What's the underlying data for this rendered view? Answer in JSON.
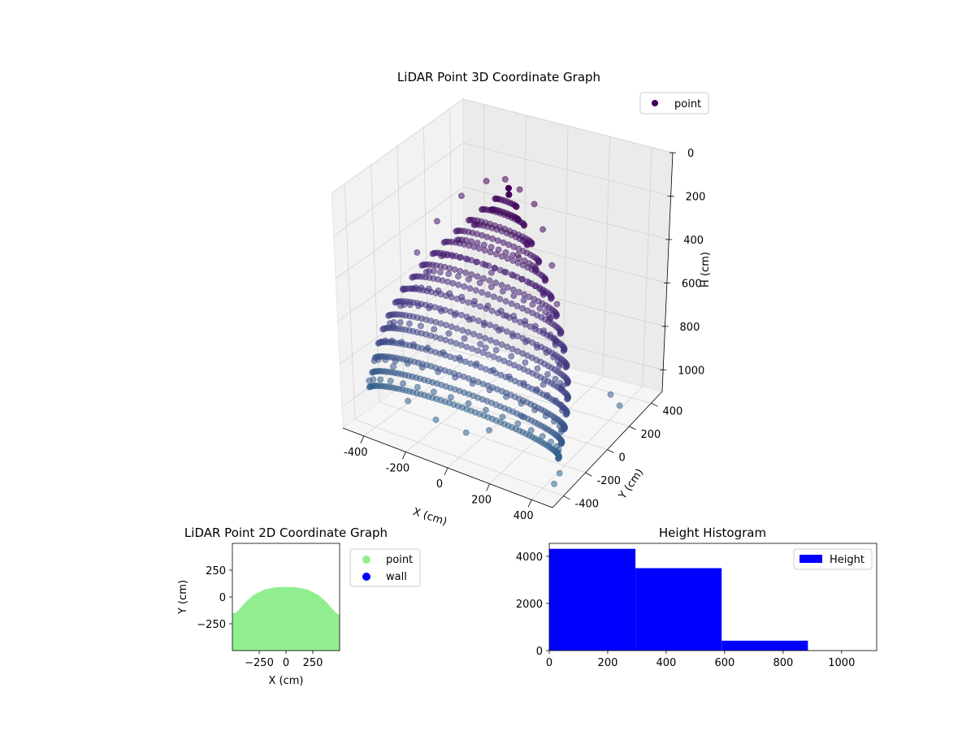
{
  "chart_data": [
    {
      "type": "scatter",
      "projection": "3d",
      "title": "LiDAR Point 3D Coordinate Graph",
      "xlabel": "X (cm)",
      "ylabel": "Y (cm)",
      "zlabel": "H (cm)",
      "xlim": [
        -500,
        500
      ],
      "ylim": [
        -500,
        500
      ],
      "zlim": [
        1100,
        0
      ],
      "x_ticks": [
        "-400",
        "-200",
        "0",
        "200",
        "400"
      ],
      "y_ticks": [
        "-400",
        "-200",
        "0",
        "200",
        "400"
      ],
      "z_ticks": [
        "0",
        "200",
        "400",
        "600",
        "800",
        "1000"
      ],
      "grid": true,
      "legend": [
        "point"
      ],
      "legend_position": "top-right",
      "colormap": "viridis",
      "series": [
        {
          "name": "point",
          "color": "#440154",
          "shape": "dome of concentric rings, apex near H≈0 and Y≈+100, base H≈1000 spreading to X≈±450",
          "points": [
            [
              -20,
              100,
              0
            ],
            [
              60,
              80,
              10
            ],
            [
              140,
              60,
              40
            ],
            [
              -100,
              80,
              30
            ],
            [
              200,
              20,
              120
            ],
            [
              -200,
              40,
              120
            ],
            [
              260,
              -20,
              250
            ],
            [
              -300,
              0,
              260
            ],
            [
              300,
              -60,
              400
            ],
            [
              -380,
              -40,
              420
            ],
            [
              320,
              -120,
              560
            ],
            [
              -420,
              -100,
              580
            ],
            [
              300,
              -200,
              720
            ],
            [
              -440,
              -160,
              740
            ],
            [
              240,
              -280,
              860
            ],
            [
              -400,
              -240,
              880
            ],
            [
              100,
              -320,
              960
            ],
            [
              -300,
              -300,
              980
            ],
            [
              0,
              -340,
              1000
            ],
            [
              -150,
              -330,
              1000
            ],
            [
              60,
              40,
              300
            ],
            [
              -60,
              20,
              420
            ],
            [
              40,
              -40,
              560
            ],
            [
              -20,
              -120,
              700
            ],
            [
              380,
              200,
              900
            ],
            [
              360,
              300,
              1000
            ],
            [
              420,
              -300,
              1050
            ],
            [
              440,
              -380,
              1060
            ]
          ]
        }
      ]
    },
    {
      "type": "scatter",
      "title": "LiDAR Point 2D Coordinate Graph",
      "xlabel": "X (cm)",
      "ylabel": "Y (cm)",
      "xlim": [
        -500,
        500
      ],
      "ylim": [
        -500,
        500
      ],
      "x_ticks": [
        "−250",
        "0",
        "250"
      ],
      "y_ticks": [
        "250",
        "0",
        "−250"
      ],
      "legend": [
        "point",
        "wall"
      ],
      "legend_position": "outside-right",
      "series": [
        {
          "name": "point",
          "color": "#90EE90",
          "boundary": [
            [
              -500,
              -150
            ],
            [
              -470,
              -150
            ],
            [
              -430,
              -110
            ],
            [
              -380,
              -50
            ],
            [
              -300,
              20
            ],
            [
              -200,
              70
            ],
            [
              -100,
              90
            ],
            [
              0,
              95
            ],
            [
              100,
              90
            ],
            [
              200,
              70
            ],
            [
              300,
              20
            ],
            [
              380,
              -50
            ],
            [
              430,
              -110
            ],
            [
              470,
              -150
            ],
            [
              500,
              -170
            ],
            [
              500,
              -500
            ],
            [
              -500,
              -500
            ]
          ]
        },
        {
          "name": "wall",
          "color": "#0000FF",
          "points": []
        }
      ]
    },
    {
      "type": "bar",
      "title": "Height Histogram",
      "xlabel": "",
      "ylabel": "",
      "xlim": [
        0,
        1120
      ],
      "ylim": [
        0,
        4550
      ],
      "x_ticks": [
        "0",
        "200",
        "400",
        "600",
        "800",
        "1000"
      ],
      "y_ticks": [
        "0",
        "2000",
        "4000"
      ],
      "legend": [
        "Height"
      ],
      "legend_position": "top-right",
      "series": [
        {
          "name": "Height",
          "color": "#0000FF",
          "bins": [
            [
              0,
              295,
              4320
            ],
            [
              295,
              590,
              3500
            ],
            [
              590,
              885,
              420
            ],
            [
              885,
              1180,
              0
            ]
          ]
        }
      ]
    }
  ]
}
